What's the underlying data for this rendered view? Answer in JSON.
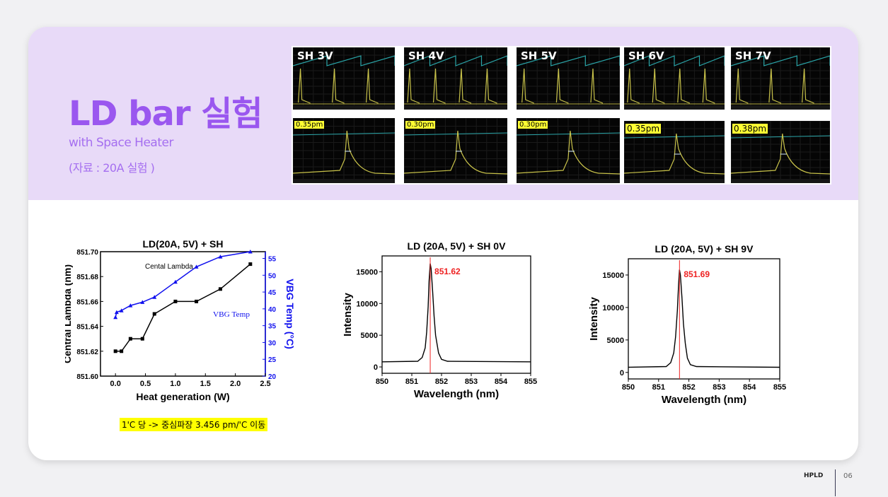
{
  "slide": {
    "title": "LD bar 실험",
    "subtitle": "with Space Heater",
    "source_note": "(자료 : 20A 실험 )",
    "footer_brand": "HPLD",
    "page_number": "06",
    "accent_color": "#9a57ef",
    "band_color": "#e8daf8",
    "highlight_note": "1'C 당 -> 중심파장 3.456 pm/'C 이동"
  },
  "scope_captures": [
    {
      "label": "SH 3V",
      "linewidth": "0.35pm"
    },
    {
      "label": "SH 4V",
      "linewidth": "0.30pm"
    },
    {
      "label": "SH 5V",
      "linewidth": "0.30pm"
    },
    {
      "label": "SH 6V",
      "linewidth": "0.35pm"
    },
    {
      "label": "SH 7V",
      "linewidth": "0.38pm"
    }
  ],
  "chart_data": [
    {
      "type": "line",
      "title": "LD(20A, 5V) + SH",
      "xlabel": "Heat generation (W)",
      "ylabel": "Central Lambda (nm)",
      "y2label": "VBG Temp (°C)",
      "xlim": [
        -0.25,
        2.5
      ],
      "ylim": [
        851.6,
        851.7
      ],
      "y2lim": [
        20,
        57
      ],
      "xticks": [
        0.0,
        0.5,
        1.0,
        1.5,
        2.0,
        2.5
      ],
      "yticks": [
        851.6,
        851.62,
        851.64,
        851.66,
        851.68,
        851.7
      ],
      "y2ticks": [
        20,
        25,
        30,
        35,
        40,
        45,
        50,
        55
      ],
      "annotations": [
        "Cental Lambda",
        "VBG Temp"
      ],
      "series": [
        {
          "axis": "left",
          "color": "#000000",
          "marker": "square",
          "x": [
            0.0,
            0.1,
            0.25,
            0.45,
            0.65,
            1.0,
            1.35,
            1.75,
            2.25
          ],
          "y": [
            851.62,
            851.62,
            851.63,
            851.63,
            851.65,
            851.66,
            851.66,
            851.67,
            851.69
          ]
        },
        {
          "axis": "right",
          "color": "#1010ee",
          "marker": "triangle",
          "x": [
            0.0,
            0.02,
            0.1,
            0.25,
            0.45,
            0.65,
            1.0,
            1.35,
            1.75,
            2.25
          ],
          "y": [
            37.5,
            39,
            39.5,
            41,
            42,
            43.5,
            48,
            52.5,
            55.5,
            57
          ]
        }
      ]
    },
    {
      "type": "line",
      "title": "LD (20A, 5V) + SH 0V",
      "xlabel": "Wavelength (nm)",
      "ylabel": "Intensity",
      "xlim": [
        850,
        855
      ],
      "ylim": [
        -1000,
        17500
      ],
      "xticks": [
        850,
        851,
        852,
        853,
        854,
        855
      ],
      "yticks": [
        0,
        5000,
        10000,
        15000
      ],
      "peak_marker_x": 851.62,
      "peak_label": "851.62",
      "series": [
        {
          "color": "#000000",
          "x": [
            850.0,
            851.2,
            851.35,
            851.45,
            851.5,
            851.55,
            851.58,
            851.62,
            851.65,
            851.7,
            851.75,
            851.8,
            851.9,
            852.0,
            852.2,
            855.0
          ],
          "y": [
            800,
            900,
            1500,
            3000,
            5500,
            9500,
            13500,
            16300,
            15500,
            12000,
            8000,
            5000,
            2200,
            1200,
            900,
            800
          ]
        }
      ]
    },
    {
      "type": "line",
      "title": "LD (20A, 5V) + SH 9V",
      "xlabel": "Wavelength (nm)",
      "ylabel": "Intensity",
      "xlim": [
        850,
        855
      ],
      "ylim": [
        -1000,
        17500
      ],
      "xticks": [
        850,
        851,
        852,
        853,
        854,
        855
      ],
      "yticks": [
        0,
        5000,
        10000,
        15000
      ],
      "peak_marker_x": 851.69,
      "peak_label": "851.69",
      "series": [
        {
          "color": "#000000",
          "x": [
            850.0,
            851.25,
            851.4,
            851.5,
            851.56,
            851.62,
            851.66,
            851.69,
            851.72,
            851.77,
            851.82,
            851.88,
            851.95,
            852.05,
            852.25,
            855.0
          ],
          "y": [
            800,
            900,
            1500,
            3000,
            5500,
            9500,
            13500,
            15800,
            15000,
            11500,
            7500,
            4500,
            2200,
            1200,
            900,
            800
          ]
        }
      ]
    }
  ]
}
